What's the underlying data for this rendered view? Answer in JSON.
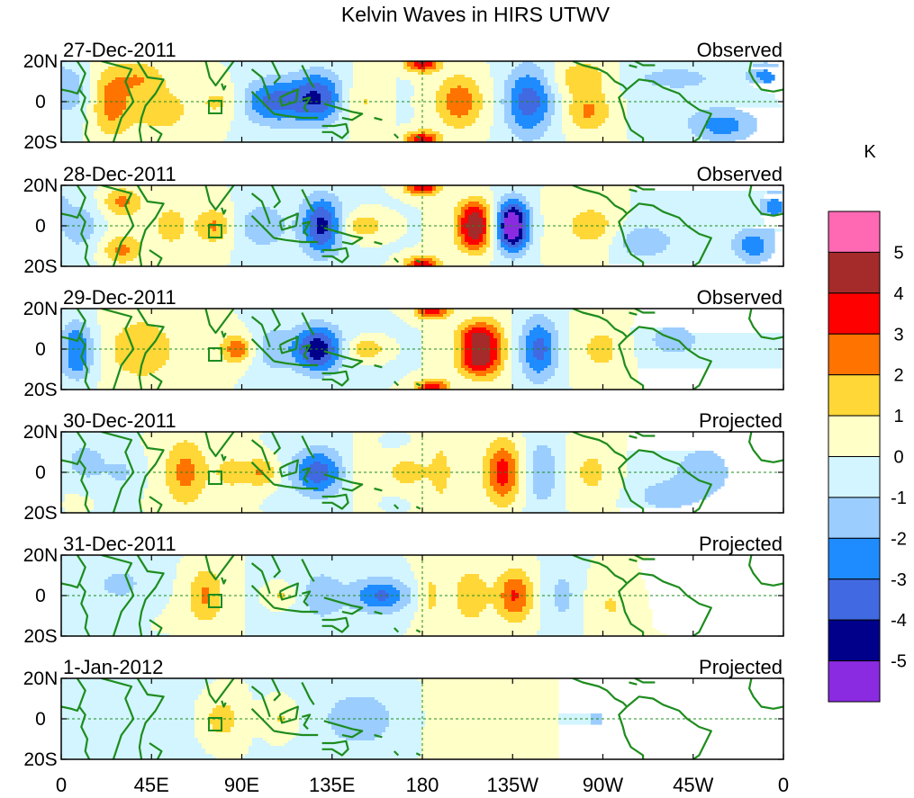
{
  "chart_data": {
    "type": "heatmap",
    "title": "Kelvin Waves in HIRS UTWV",
    "units": "K",
    "lat_ticks": [
      "20N",
      "0",
      "20S"
    ],
    "lon_ticks": [
      "0",
      "45E",
      "90E",
      "135E",
      "180",
      "135W",
      "90W",
      "45W",
      "0"
    ],
    "lon_range": [
      0,
      360
    ],
    "lat_range": [
      -20,
      20
    ],
    "colorbar": {
      "labels": [
        "5",
        "4",
        "3",
        "2",
        "1",
        "0",
        "-1",
        "-2",
        "-3",
        "-4",
        "-5"
      ],
      "colors": [
        "#ff69b4",
        "#a52a2a",
        "#ff0000",
        "#ff7300",
        "#ffd737",
        "#ffffc8",
        "#d2f5ff",
        "#9bcdff",
        "#1e8cff",
        "#4169e1",
        "#00008b",
        "#8a2be2"
      ]
    },
    "panels": [
      {
        "date": "27-Dec-2011",
        "status": "Observed",
        "blobs": [
          {
            "lon": 25,
            "lat": 0,
            "v": 2.4,
            "sx": 7,
            "sy": 12
          },
          {
            "lon": 40,
            "lat": 12,
            "v": 1.6,
            "sx": 8,
            "sy": 6
          },
          {
            "lon": 50,
            "lat": -5,
            "v": 1.3,
            "sx": 10,
            "sy": 8
          },
          {
            "lon": 5,
            "lat": 5,
            "v": -1.6,
            "sx": 8,
            "sy": 10
          },
          {
            "lon": 105,
            "lat": 0,
            "v": -3.2,
            "sx": 11,
            "sy": 8
          },
          {
            "lon": 128,
            "lat": 2,
            "v": -3.6,
            "sx": 9,
            "sy": 9
          },
          {
            "lon": 80,
            "lat": 0,
            "v": 1.2,
            "sx": 8,
            "sy": 6
          },
          {
            "lon": 150,
            "lat": 0,
            "v": 1.4,
            "sx": 8,
            "sy": 9
          },
          {
            "lon": 180,
            "lat": 19,
            "v": 4.2,
            "sx": 6,
            "sy": 3
          },
          {
            "lon": 180,
            "lat": -19,
            "v": 4.2,
            "sx": 6,
            "sy": 3
          },
          {
            "lon": 198,
            "lat": 0,
            "v": 2.6,
            "sx": 8,
            "sy": 9
          },
          {
            "lon": 233,
            "lat": 0,
            "v": -3.9,
            "sx": 9,
            "sy": 12
          },
          {
            "lon": 263,
            "lat": -5,
            "v": 2.1,
            "sx": 8,
            "sy": 7
          },
          {
            "lon": 260,
            "lat": 12,
            "v": 1.8,
            "sx": 10,
            "sy": 6
          },
          {
            "lon": 305,
            "lat": 12,
            "v": -1.2,
            "sx": 18,
            "sy": 5
          },
          {
            "lon": 330,
            "lat": -12,
            "v": -2.4,
            "sx": 12,
            "sy": 6
          },
          {
            "lon": 350,
            "lat": 13,
            "v": -2.0,
            "sx": 6,
            "sy": 5
          }
        ]
      },
      {
        "date": "28-Dec-2011",
        "status": "Observed",
        "blobs": [
          {
            "lon": 30,
            "lat": 12,
            "v": 2.1,
            "sx": 7,
            "sy": 5
          },
          {
            "lon": 30,
            "lat": -12,
            "v": 2.1,
            "sx": 7,
            "sy": 5
          },
          {
            "lon": 10,
            "lat": 0,
            "v": -1.6,
            "sx": 8,
            "sy": 10
          },
          {
            "lon": 55,
            "lat": 0,
            "v": 1.2,
            "sx": 6,
            "sy": 8
          },
          {
            "lon": 76,
            "lat": 0,
            "v": 2.0,
            "sx": 6,
            "sy": 6
          },
          {
            "lon": 100,
            "lat": 0,
            "v": -1.9,
            "sx": 8,
            "sy": 8
          },
          {
            "lon": 130,
            "lat": 0,
            "v": -4.2,
            "sx": 7,
            "sy": 10
          },
          {
            "lon": 150,
            "lat": 0,
            "v": 1.9,
            "sx": 9,
            "sy": 5
          },
          {
            "lon": 180,
            "lat": 19,
            "v": 4.0,
            "sx": 6,
            "sy": 3
          },
          {
            "lon": 180,
            "lat": -19,
            "v": 3.8,
            "sx": 6,
            "sy": 3
          },
          {
            "lon": 206,
            "lat": 5,
            "v": 3.4,
            "sx": 6,
            "sy": 6
          },
          {
            "lon": 206,
            "lat": -5,
            "v": 3.4,
            "sx": 6,
            "sy": 6
          },
          {
            "lon": 225,
            "lat": 5,
            "v": -4.3,
            "sx": 6,
            "sy": 7
          },
          {
            "lon": 225,
            "lat": -5,
            "v": -4.3,
            "sx": 6,
            "sy": 7
          },
          {
            "lon": 265,
            "lat": 0,
            "v": 1.5,
            "sx": 10,
            "sy": 8
          },
          {
            "lon": 290,
            "lat": -8,
            "v": -1.8,
            "sx": 10,
            "sy": 6
          },
          {
            "lon": 355,
            "lat": 10,
            "v": -2.2,
            "sx": 5,
            "sy": 6
          },
          {
            "lon": 345,
            "lat": -10,
            "v": -2.6,
            "sx": 7,
            "sy": 6
          }
        ]
      },
      {
        "date": "29-Dec-2011",
        "status": "Observed",
        "blobs": [
          {
            "lon": 8,
            "lat": 5,
            "v": -2.5,
            "sx": 6,
            "sy": 7
          },
          {
            "lon": 8,
            "lat": -8,
            "v": -2.2,
            "sx": 6,
            "sy": 6
          },
          {
            "lon": 40,
            "lat": 0,
            "v": 1.5,
            "sx": 12,
            "sy": 12
          },
          {
            "lon": 88,
            "lat": 0,
            "v": 2.8,
            "sx": 6,
            "sy": 5
          },
          {
            "lon": 105,
            "lat": 0,
            "v": -1.6,
            "sx": 8,
            "sy": 8
          },
          {
            "lon": 128,
            "lat": 0,
            "v": -4.5,
            "sx": 8,
            "sy": 8
          },
          {
            "lon": 152,
            "lat": 0,
            "v": 2.0,
            "sx": 7,
            "sy": 4
          },
          {
            "lon": 185,
            "lat": 19,
            "v": 3.8,
            "sx": 6,
            "sy": 3
          },
          {
            "lon": 185,
            "lat": -19,
            "v": 3.6,
            "sx": 6,
            "sy": 3
          },
          {
            "lon": 205,
            "lat": 6,
            "v": 2.8,
            "sx": 6,
            "sy": 5
          },
          {
            "lon": 205,
            "lat": -6,
            "v": 2.8,
            "sx": 6,
            "sy": 5
          },
          {
            "lon": 213,
            "lat": 0,
            "v": 3.0,
            "sx": 6,
            "sy": 10
          },
          {
            "lon": 238,
            "lat": 0,
            "v": -3.7,
            "sx": 7,
            "sy": 11
          },
          {
            "lon": 270,
            "lat": 0,
            "v": 1.3,
            "sx": 9,
            "sy": 10
          },
          {
            "lon": 305,
            "lat": 5,
            "v": -1.3,
            "sx": 10,
            "sy": 6
          }
        ]
      },
      {
        "date": "30-Dec-2011",
        "status": "Projected",
        "blobs": [
          {
            "lon": 12,
            "lat": 5,
            "v": -2.0,
            "sx": 6,
            "sy": 6
          },
          {
            "lon": 30,
            "lat": 0,
            "v": -1.4,
            "sx": 8,
            "sy": 8
          },
          {
            "lon": 62,
            "lat": 0,
            "v": 2.1,
            "sx": 7,
            "sy": 12
          },
          {
            "lon": 85,
            "lat": 0,
            "v": 1.2,
            "sx": 7,
            "sy": 8
          },
          {
            "lon": 100,
            "lat": 0,
            "v": 2.1,
            "sx": 6,
            "sy": 5
          },
          {
            "lon": 128,
            "lat": 0,
            "v": -3.3,
            "sx": 9,
            "sy": 8
          },
          {
            "lon": 150,
            "lat": 0,
            "v": 1.3,
            "sx": 6,
            "sy": 8
          },
          {
            "lon": 172,
            "lat": 0,
            "v": 1.8,
            "sx": 7,
            "sy": 5
          },
          {
            "lon": 189,
            "lat": 0,
            "v": 1.2,
            "sx": 5,
            "sy": 14
          },
          {
            "lon": 220,
            "lat": 0,
            "v": 3.2,
            "sx": 6,
            "sy": 11
          },
          {
            "lon": 240,
            "lat": 0,
            "v": -2.2,
            "sx": 6,
            "sy": 12
          },
          {
            "lon": 265,
            "lat": 0,
            "v": 1.2,
            "sx": 8,
            "sy": 10
          },
          {
            "lon": 300,
            "lat": -12,
            "v": -1.4,
            "sx": 10,
            "sy": 5
          },
          {
            "lon": 320,
            "lat": 0,
            "v": -1.2,
            "sx": 12,
            "sy": 12
          }
        ]
      },
      {
        "date": "31-Dec-2011",
        "status": "Projected",
        "blobs": [
          {
            "lon": 30,
            "lat": 5,
            "v": -1.4,
            "sx": 15,
            "sy": 10
          },
          {
            "lon": 72,
            "lat": 0,
            "v": 2.0,
            "sx": 6,
            "sy": 10
          },
          {
            "lon": 110,
            "lat": 0,
            "v": 1.4,
            "sx": 5,
            "sy": 4
          },
          {
            "lon": 130,
            "lat": 0,
            "v": -1.3,
            "sx": 8,
            "sy": 10
          },
          {
            "lon": 160,
            "lat": 0,
            "v": -3.0,
            "sx": 10,
            "sy": 6
          },
          {
            "lon": 184,
            "lat": 0,
            "v": 1.2,
            "sx": 5,
            "sy": 12
          },
          {
            "lon": 204,
            "lat": 0,
            "v": 1.6,
            "sx": 6,
            "sy": 10
          },
          {
            "lon": 226,
            "lat": 0,
            "v": 2.8,
            "sx": 6,
            "sy": 9
          },
          {
            "lon": 250,
            "lat": 0,
            "v": -1.5,
            "sx": 7,
            "sy": 12
          },
          {
            "lon": 275,
            "lat": -5,
            "v": 1.1,
            "sx": 10,
            "sy": 10
          }
        ]
      },
      {
        "date": "1-Jan-2012",
        "status": "Projected",
        "blobs": [
          {
            "lon": 30,
            "lat": 0,
            "v": -1.2,
            "sx": 25,
            "sy": 15
          },
          {
            "lon": 80,
            "lat": 0,
            "v": 1.6,
            "sx": 7,
            "sy": 8
          },
          {
            "lon": 110,
            "lat": 0,
            "v": 1.3,
            "sx": 6,
            "sy": 6
          },
          {
            "lon": 150,
            "lat": 0,
            "v": -1.3,
            "sx": 15,
            "sy": 12
          },
          {
            "lon": 215,
            "lat": 0,
            "v": 0.7,
            "sx": 20,
            "sy": 15
          },
          {
            "lon": 265,
            "lat": 0,
            "v": -1.1,
            "sx": 12,
            "sy": 12
          }
        ]
      }
    ]
  }
}
